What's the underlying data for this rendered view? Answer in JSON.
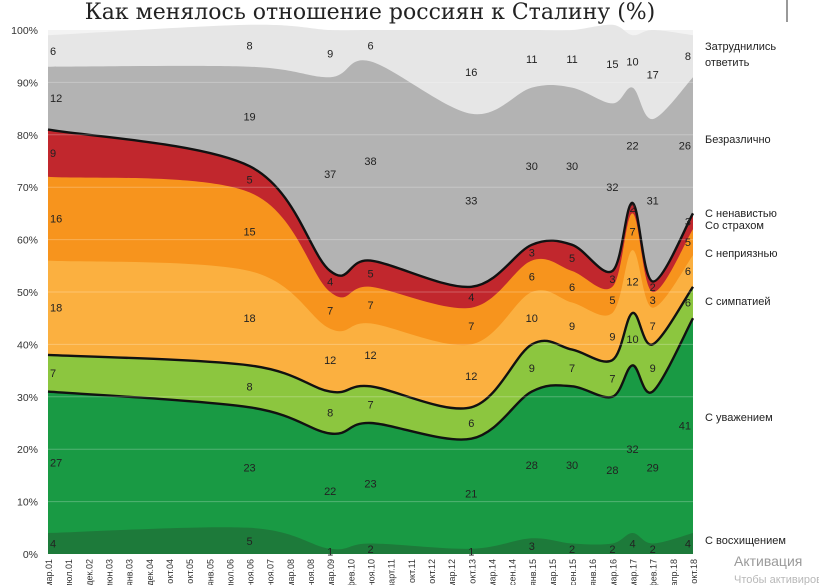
{
  "chart_data": {
    "type": "area",
    "title": "Как менялось отношение россиян к Сталину (%)",
    "ylim": [
      0,
      100
    ],
    "y_ticks": [
      "0%",
      "10%",
      "20%",
      "30%",
      "40%",
      "50%",
      "60%",
      "70%",
      "80%",
      "90%",
      "100%"
    ],
    "x_labels": [
      "мар.01",
      "июл.01",
      "дек.02",
      "июн.03",
      "янв.03",
      "дек.04",
      "окт.04",
      "окт.05",
      "янв.05",
      "июл.06",
      "ноя.06",
      "ноя.07",
      "мар.08",
      "ноя.08",
      "мар.09",
      "фев.10",
      "ноя.10",
      "март.11",
      "окт.11",
      "окт.12",
      "мар.12",
      "окт.13",
      "мар.14",
      "сен.14",
      "янв.15",
      "мар.15",
      "сен.15",
      "янв.16",
      "мар.16",
      "мар.17",
      "фев.17",
      "апр.18",
      "окт.18"
    ],
    "anchor_x_index": [
      0,
      10,
      14,
      16,
      21,
      24,
      26,
      28,
      29,
      30,
      32
    ],
    "series": [
      {
        "name": "С восхищением",
        "values": [
          4,
          5,
          1,
          2,
          1,
          3,
          2,
          2,
          4,
          2,
          4
        ]
      },
      {
        "name": "С уважением",
        "values": [
          27,
          23,
          22,
          23,
          21,
          28,
          30,
          28,
          32,
          29,
          41
        ]
      },
      {
        "name": "С симпатией",
        "values": [
          7,
          8,
          8,
          7,
          6,
          9,
          7,
          7,
          10,
          9,
          6
        ]
      },
      {
        "name": "С неприязнью",
        "values": [
          18,
          18,
          12,
          12,
          12,
          10,
          9,
          9,
          12,
          7,
          6
        ]
      },
      {
        "name": "Со страхом",
        "values": [
          16,
          15,
          7,
          7,
          7,
          6,
          6,
          5,
          7,
          3,
          5
        ]
      },
      {
        "name": "С ненавистью",
        "values": [
          9,
          5,
          4,
          5,
          4,
          3,
          5,
          3,
          2,
          2,
          3
        ]
      },
      {
        "name": "Безразлично",
        "values": [
          12,
          19,
          37,
          38,
          33,
          30,
          30,
          32,
          22,
          31,
          26
        ]
      },
      {
        "name": "Затруднились ответить",
        "values": [
          6,
          8,
          9,
          6,
          16,
          11,
          11,
          15,
          10,
          17,
          8
        ]
      }
    ],
    "legend_labels": [
      "Затруднились ответить",
      "Безразлично",
      "С ненавистью",
      "Со страхом",
      "С неприязнью",
      "С симпатией",
      "С уважением",
      "С восхищением"
    ],
    "colors": [
      "#1d7a3a",
      "#199a44",
      "#8cc63f",
      "#fbb040",
      "#f7941d",
      "#c1272d",
      "#b3b3b3",
      "#e6e6e6"
    ]
  },
  "watermark": {
    "line1": "Активация",
    "line2": "Чтобы активировать"
  }
}
